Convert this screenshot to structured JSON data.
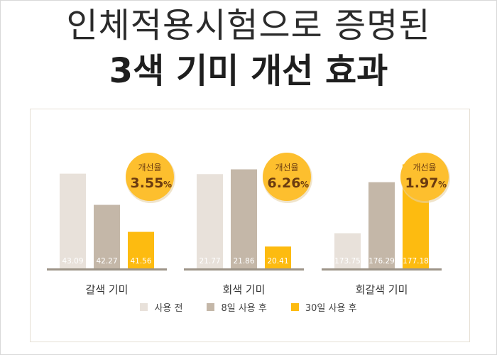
{
  "header": {
    "line1": "인체적용시험으로 증명된",
    "line2": "3색 기미 개선 효과"
  },
  "chart_data": {
    "type": "bar",
    "categories": [
      "갈색 기미",
      "회색 기미",
      "회갈색 기미"
    ],
    "series": [
      {
        "name": "사용 전",
        "values": [
          43.09,
          21.77,
          173.75
        ]
      },
      {
        "name": "8일 사용 후",
        "values": [
          42.27,
          21.86,
          176.29
        ]
      },
      {
        "name": "30일 사용 후",
        "values": [
          41.56,
          20.41,
          177.18
        ]
      }
    ],
    "value_labels": [
      [
        "43.09",
        "42.27",
        "41.56"
      ],
      [
        "21.77",
        "21.86",
        "20.41"
      ],
      [
        "173.75",
        "176.29",
        "177.18"
      ]
    ],
    "badges": [
      {
        "label": "개선율",
        "value": "3.55",
        "unit": "%"
      },
      {
        "label": "개선율",
        "value": "6.26",
        "unit": "%"
      },
      {
        "label": "개선율",
        "value": "1.97",
        "unit": "%"
      }
    ],
    "group_axis_ranges": [
      [
        40.6,
        43.4
      ],
      [
        20.0,
        22.0
      ],
      [
        172.0,
        177.3
      ]
    ],
    "colors": [
      "#e8e1da",
      "#c4b7a8",
      "#fdbb10"
    ],
    "badge_color": "#fdbf2e",
    "badge_text_color": "#6b3b10",
    "grid": false,
    "legend_position": "bottom-center"
  }
}
